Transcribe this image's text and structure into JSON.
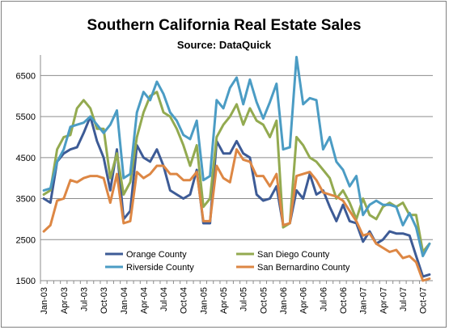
{
  "chart_data": {
    "type": "line",
    "title": "Southern California Real Estate Sales",
    "subtitle": "Source: DataQuick",
    "xlabel": "",
    "ylabel": "",
    "ylim": [
      1500,
      7000
    ],
    "yticks": [
      1500,
      2500,
      3500,
      4500,
      5500,
      6500
    ],
    "grid": true,
    "legend_position": "bottom-center",
    "x": [
      "Jan-03",
      "Feb-03",
      "Mar-03",
      "Apr-03",
      "May-03",
      "Jun-03",
      "Jul-03",
      "Aug-03",
      "Sep-03",
      "Oct-03",
      "Nov-03",
      "Dec-03",
      "Jan-04",
      "Feb-04",
      "Mar-04",
      "Apr-04",
      "May-04",
      "Jun-04",
      "Jul-04",
      "Aug-04",
      "Sep-04",
      "Oct-04",
      "Nov-04",
      "Dec-04",
      "Jan-05",
      "Feb-05",
      "Mar-05",
      "Apr-05",
      "May-05",
      "Jun-05",
      "Jul-05",
      "Aug-05",
      "Sep-05",
      "Oct-05",
      "Nov-05",
      "Dec-05",
      "Jan-06",
      "Feb-06",
      "Mar-06",
      "Apr-06",
      "May-06",
      "Jun-06",
      "Jul-06",
      "Aug-06",
      "Sep-06",
      "Oct-06",
      "Nov-06",
      "Dec-06",
      "Jan-07",
      "Feb-07",
      "Mar-07",
      "Apr-07",
      "May-07",
      "Jun-07",
      "Jul-07",
      "Aug-07",
      "Sep-07",
      "Oct-07",
      "Nov-07"
    ],
    "xtick_labels": [
      "Jan-03",
      "Apr-03",
      "Jul-03",
      "Oct-03",
      "Jan-04",
      "Apr-04",
      "Jul-04",
      "Oct-04",
      "Jan-05",
      "Apr-05",
      "Jul-05",
      "Oct-05",
      "Jan-06",
      "Apr-06",
      "Jul-06",
      "Oct-06",
      "Jan-07",
      "Apr-07",
      "Jul-07",
      "Oct-07"
    ],
    "series": [
      {
        "name": "Orange County",
        "color": "#3D5B96",
        "values": [
          3500,
          3400,
          4400,
          4600,
          4700,
          4750,
          5100,
          5500,
          4900,
          4500,
          3700,
          4700,
          3000,
          3200,
          4800,
          4500,
          4400,
          4700,
          4300,
          3700,
          3600,
          3500,
          3600,
          4200,
          2900,
          2900,
          4900,
          4600,
          4600,
          4900,
          4600,
          4500,
          3600,
          3450,
          3500,
          3800,
          2850,
          2900,
          3700,
          3500,
          4100,
          3600,
          3700,
          3300,
          2950,
          3350,
          2950,
          2900,
          2450,
          2700,
          2400,
          2500,
          2700,
          2650,
          2650,
          2600,
          2100,
          1600,
          1650
        ]
      },
      {
        "name": "San Diego County",
        "color": "#93AA50",
        "values": [
          3600,
          3700,
          4700,
          5000,
          5050,
          5700,
          5900,
          5700,
          5200,
          5200,
          4000,
          4600,
          3600,
          3900,
          5000,
          5600,
          6000,
          6100,
          5600,
          5500,
          5200,
          4800,
          4300,
          4800,
          3300,
          3500,
          5000,
          5300,
          5500,
          5800,
          5300,
          5700,
          5400,
          5300,
          5000,
          5400,
          2800,
          2900,
          5000,
          4800,
          4500,
          4400,
          4200,
          4000,
          3500,
          3700,
          3400,
          3000,
          3500,
          3100,
          3000,
          3300,
          3400,
          3300,
          3400,
          3100,
          3100,
          2200,
          2400
        ]
      },
      {
        "name": "Riverside County",
        "color": "#4B9CC4",
        "values": [
          3700,
          3750,
          4400,
          4700,
          5250,
          5300,
          5350,
          5500,
          5300,
          5100,
          5300,
          5650,
          4000,
          4100,
          5600,
          6100,
          5900,
          6350,
          6050,
          5600,
          5400,
          5050,
          4950,
          5400,
          3950,
          4050,
          5900,
          5700,
          6200,
          6450,
          5800,
          6400,
          5850,
          5450,
          5850,
          6300,
          4700,
          4750,
          6950,
          5800,
          5950,
          5900,
          4700,
          5000,
          4400,
          4200,
          3800,
          4050,
          3100,
          3350,
          3450,
          3350,
          3350,
          3300,
          2850,
          3150,
          2800,
          2100,
          2400
        ]
      },
      {
        "name": "San Bernardino County",
        "color": "#DD8744",
        "values": [
          2700,
          2850,
          3450,
          3500,
          3950,
          3900,
          4000,
          4050,
          4050,
          4000,
          3400,
          4100,
          2900,
          2950,
          4150,
          4000,
          4100,
          4300,
          4300,
          4100,
          4100,
          3950,
          3950,
          4150,
          2950,
          2950,
          4300,
          4000,
          3900,
          4700,
          4450,
          4400,
          4050,
          4050,
          3800,
          4100,
          2850,
          2900,
          4050,
          4100,
          4150,
          3950,
          3650,
          3600,
          3550,
          3450,
          3200,
          2950,
          2600,
          2650,
          2400,
          2300,
          2200,
          2250,
          2050,
          2100,
          1950,
          1500,
          1550
        ]
      }
    ]
  }
}
